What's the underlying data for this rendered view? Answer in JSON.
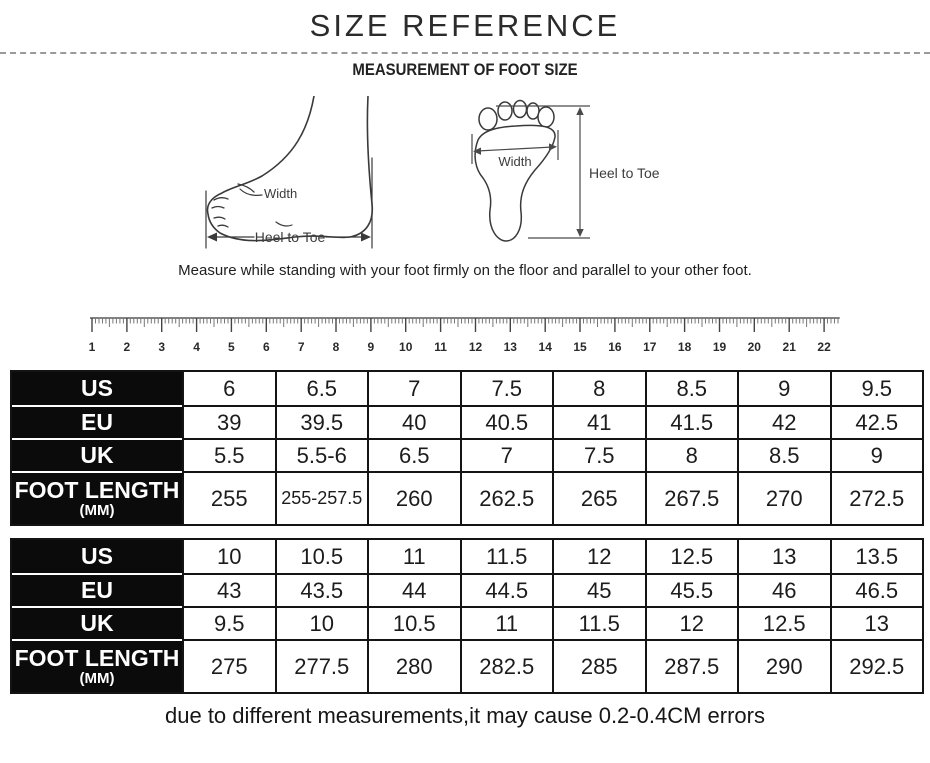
{
  "header": {
    "title": "SIZE REFERENCE",
    "subtitle": "MEASUREMENT OF FOOT SIZE"
  },
  "diagrams": {
    "side_view": {
      "width_label": "Width",
      "length_label": "Heel to Toe"
    },
    "top_view": {
      "width_label": "Width",
      "length_label": "Heel to Toe"
    },
    "instruction": "Measure while standing with your foot firmly on the floor and parallel to your other foot."
  },
  "ruler": {
    "unit_numbers": [
      1,
      2,
      3,
      4,
      5,
      6,
      7,
      8,
      9,
      10,
      11,
      12,
      13,
      14,
      15,
      16,
      17,
      18,
      19,
      20,
      21,
      22
    ]
  },
  "tables": [
    {
      "rows": [
        {
          "label": "US",
          "sub": "",
          "values": [
            "6",
            "6.5",
            "7",
            "7.5",
            "8",
            "8.5",
            "9",
            "9.5"
          ]
        },
        {
          "label": "EU",
          "sub": "",
          "values": [
            "39",
            "39.5",
            "40",
            "40.5",
            "41",
            "41.5",
            "42",
            "42.5"
          ]
        },
        {
          "label": "UK",
          "sub": "",
          "values": [
            "5.5",
            "5.5-6",
            "6.5",
            "7",
            "7.5",
            "8",
            "8.5",
            "9"
          ]
        },
        {
          "label": "FOOT LENGTH",
          "sub": "(MM)",
          "values": [
            "255",
            "255-257.5",
            "260",
            "262.5",
            "265",
            "267.5",
            "270",
            "272.5"
          ]
        }
      ]
    },
    {
      "rows": [
        {
          "label": "US",
          "sub": "",
          "values": [
            "10",
            "10.5",
            "11",
            "11.5",
            "12",
            "12.5",
            "13",
            "13.5"
          ]
        },
        {
          "label": "EU",
          "sub": "",
          "values": [
            "43",
            "43.5",
            "44",
            "44.5",
            "45",
            "45.5",
            "46",
            "46.5"
          ]
        },
        {
          "label": "UK",
          "sub": "",
          "values": [
            "9.5",
            "10",
            "10.5",
            "11",
            "11.5",
            "12",
            "12.5",
            "13"
          ]
        },
        {
          "label": "FOOT LENGTH",
          "sub": "(MM)",
          "values": [
            "275",
            "277.5",
            "280",
            "282.5",
            "285",
            "287.5",
            "290",
            "292.5"
          ]
        }
      ]
    }
  ],
  "footer": {
    "note": "due to different measurements,it may cause 0.2-0.4CM errors"
  }
}
